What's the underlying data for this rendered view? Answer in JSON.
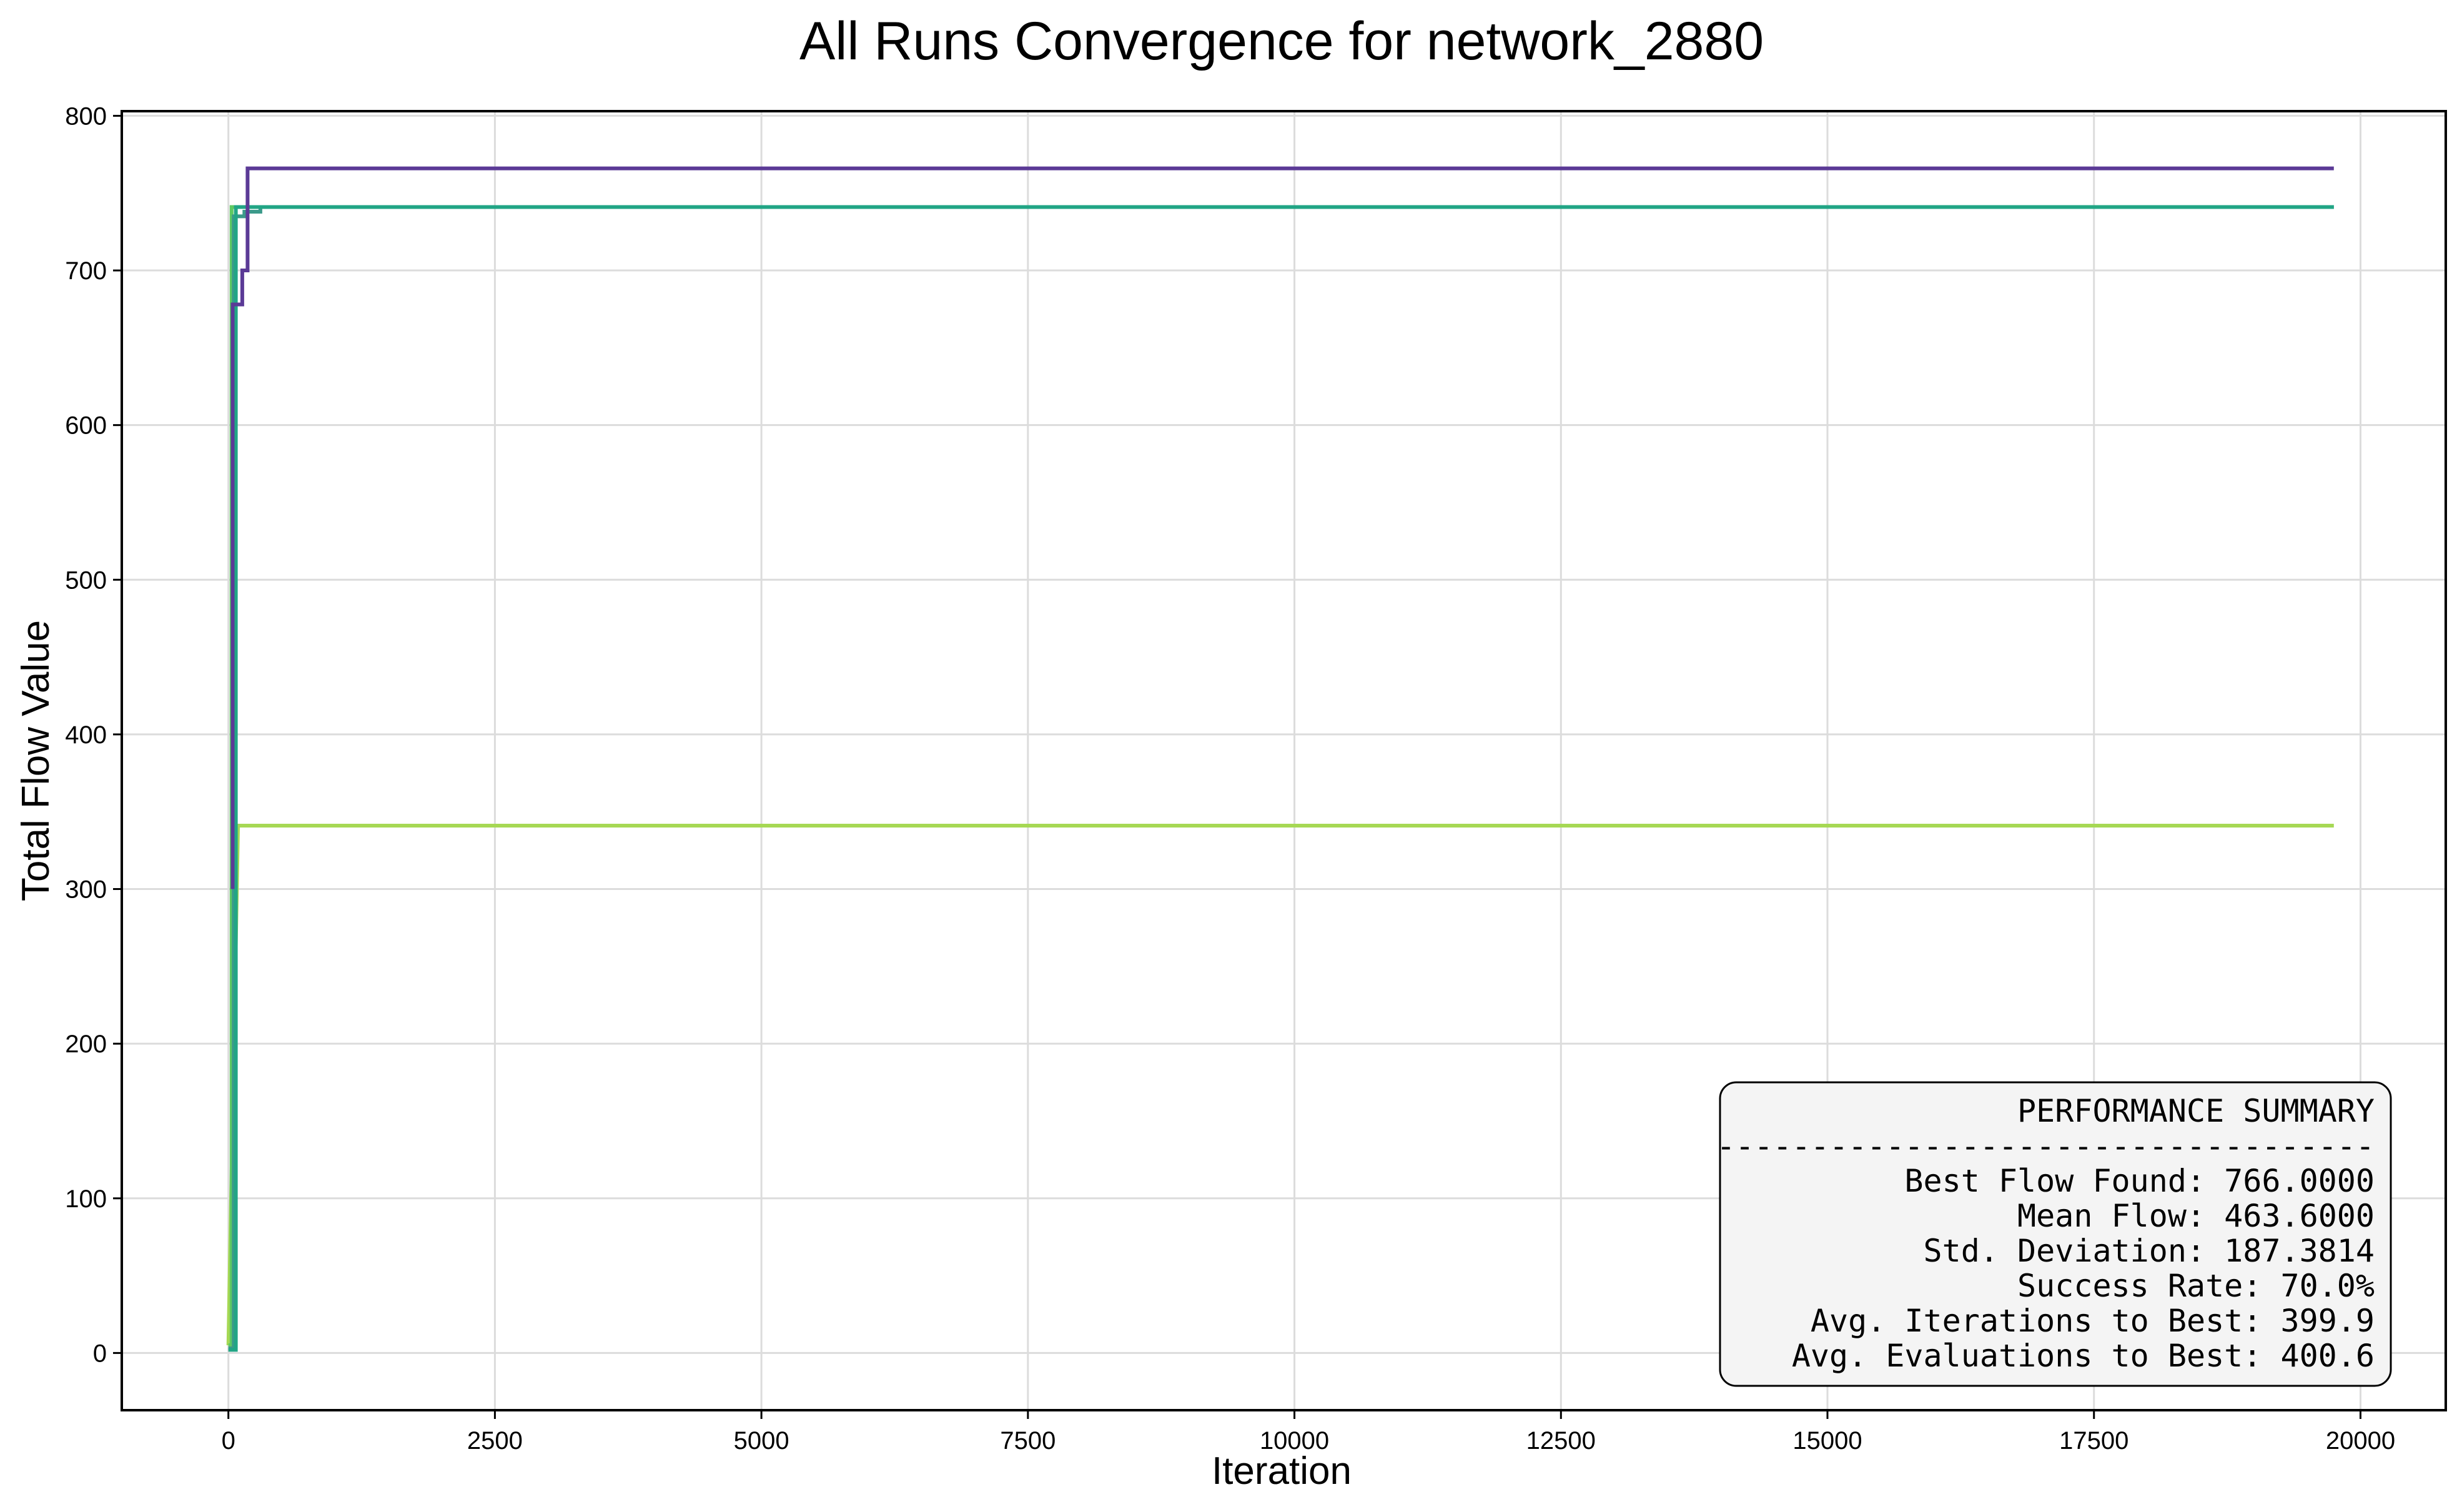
{
  "chart_data": {
    "type": "line",
    "title": "All Runs Convergence for network_2880",
    "xlabel": "Iteration",
    "ylabel": "Total Flow Value",
    "xlim": [
      -1000,
      20800
    ],
    "ylim": [
      -37,
      803
    ],
    "xticks": [
      0,
      2500,
      5000,
      7500,
      10000,
      12500,
      15000,
      17500,
      20000
    ],
    "yticks": [
      0,
      100,
      200,
      300,
      400,
      500,
      600,
      700,
      800
    ],
    "grid": true,
    "series": [
      {
        "color": "#a6d854",
        "x": [
          0,
          90,
          19750
        ],
        "y": [
          5,
          341,
          341
        ]
      },
      {
        "color": "#5ec962",
        "x": [
          0,
          30,
          30,
          2900
        ],
        "y": [
          5,
          5,
          741,
          741
        ]
      },
      {
        "color": "#3b9a8a",
        "x": [
          0,
          50,
          50,
          150,
          150,
          300,
          300,
          19750
        ],
        "y": [
          3,
          3,
          735,
          735,
          738,
          738,
          741,
          741
        ]
      },
      {
        "color": "#21a585",
        "x": [
          0,
          70,
          70,
          19750
        ],
        "y": [
          2,
          2,
          741,
          741
        ]
      },
      {
        "color": "#5b3a96",
        "x": [
          40,
          40,
          130,
          130,
          180,
          180,
          19750
        ],
        "y": [
          300,
          678,
          678,
          700,
          700,
          766,
          766
        ]
      }
    ],
    "summary": {
      "heading": "PERFORMANCE SUMMARY",
      "separator": "-----------------------------------",
      "lines": [
        "Best Flow Found: 766.0000",
        "Mean Flow: 463.6000",
        "Std. Deviation: 187.3814",
        "Success Rate: 70.0%",
        "Avg. Iterations to Best: 399.9",
        "Avg. Evaluations to Best: 400.6"
      ]
    }
  }
}
